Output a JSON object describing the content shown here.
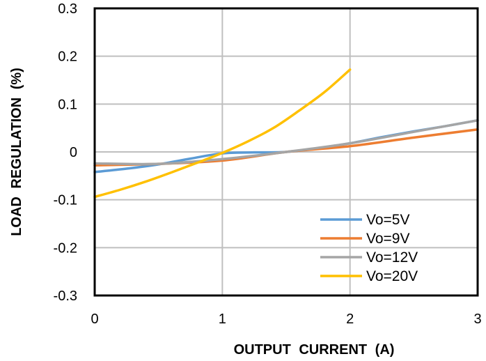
{
  "chart_data": {
    "type": "line",
    "title": "",
    "xlabel": "OUTPUT CURRENT (A)",
    "ylabel": "LOAD REGULATION (%)",
    "xlim": [
      0,
      3
    ],
    "ylim": [
      -0.3,
      0.3
    ],
    "x_ticks": [
      0,
      1,
      2,
      3
    ],
    "y_ticks": [
      -0.3,
      -0.2,
      -0.1,
      0,
      0.1,
      0.2,
      0.3
    ],
    "x_tick_labels": [
      "0",
      "1",
      "2",
      "3"
    ],
    "y_tick_labels": [
      "-0.3",
      "-0.2",
      "-0.1",
      "0",
      "0.1",
      "0.2",
      "0.3"
    ],
    "grid": true,
    "legend_position": "bottom-right",
    "series": [
      {
        "name": "Vo=5V",
        "color": "#5b9bd5",
        "x": [
          0,
          0.25,
          0.5,
          0.75,
          1.0,
          1.25,
          1.5,
          1.75,
          2.0,
          2.25,
          2.5,
          2.75,
          3.0
        ],
        "y": [
          -0.042,
          -0.035,
          -0.026,
          -0.014,
          -0.003,
          -0.001,
          0.0,
          0.008,
          0.018,
          0.031,
          0.043,
          0.054,
          0.066
        ]
      },
      {
        "name": "Vo=9V",
        "color": "#ed7d31",
        "x": [
          0,
          0.5,
          1.0,
          1.5,
          2.0,
          2.5,
          3.0
        ],
        "y": [
          -0.028,
          -0.025,
          -0.018,
          0.0,
          0.012,
          0.03,
          0.047
        ]
      },
      {
        "name": "Vo=12V",
        "color": "#a5a5a5",
        "x": [
          0,
          0.5,
          1.0,
          1.5,
          2.0,
          2.5,
          3.0
        ],
        "y": [
          -0.024,
          -0.025,
          -0.015,
          0.0,
          0.018,
          0.042,
          0.066
        ]
      },
      {
        "name": "Vo=20V",
        "color": "#ffc000",
        "x": [
          0,
          0.2,
          0.4,
          0.6,
          0.8,
          1.0,
          1.2,
          1.4,
          1.6,
          1.8,
          2.0
        ],
        "y": [
          -0.094,
          -0.079,
          -0.062,
          -0.043,
          -0.023,
          -0.002,
          0.022,
          0.05,
          0.086,
          0.125,
          0.172
        ]
      }
    ]
  }
}
